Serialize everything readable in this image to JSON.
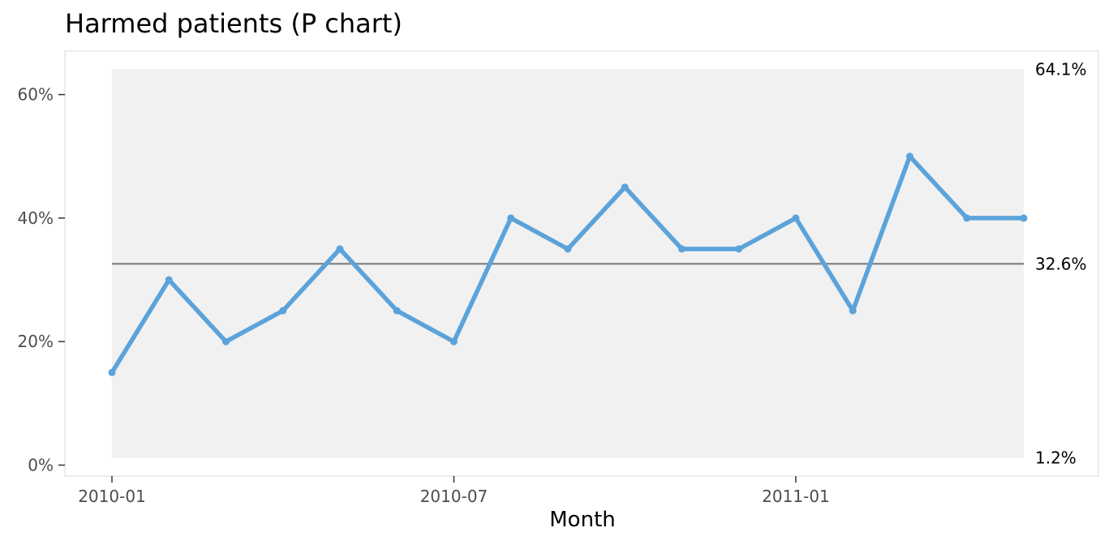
{
  "chart_data": {
    "type": "line",
    "title": "Harmed patients (P chart)",
    "xlabel": "Month",
    "ylabel": "",
    "x": [
      "2010-01",
      "2010-02",
      "2010-03",
      "2010-04",
      "2010-05",
      "2010-06",
      "2010-07",
      "2010-08",
      "2010-09",
      "2010-10",
      "2010-11",
      "2010-12",
      "2011-01",
      "2011-02",
      "2011-03",
      "2011-04",
      "2011-05"
    ],
    "x_tick_labels": [
      "2010-01",
      "2010-07",
      "2011-01"
    ],
    "series": [
      {
        "values": [
          0.15,
          0.3,
          0.2,
          0.25,
          0.35,
          0.25,
          0.2,
          0.4,
          0.35,
          0.45,
          0.35,
          0.35,
          0.4,
          0.25,
          0.5,
          0.4,
          0.4
        ]
      }
    ],
    "y_ticks": [
      0,
      0.2,
      0.4,
      0.6
    ],
    "y_tick_labels": [
      "0%",
      "20%",
      "40%",
      "60%"
    ],
    "ylim": [
      0,
      0.66
    ],
    "center_line": {
      "value": 0.326,
      "label": "32.6%"
    },
    "upper_limit": {
      "value": 0.641,
      "label": "64.1%"
    },
    "lower_limit": {
      "value": 0.012,
      "label": "1.2%"
    },
    "grid": false,
    "legend": "none",
    "colors": {
      "line": "#5ba3da",
      "center_line": "#8c8c8c",
      "limit_band": "#f1f1f1",
      "panel_border": "#e5e5e5"
    }
  }
}
